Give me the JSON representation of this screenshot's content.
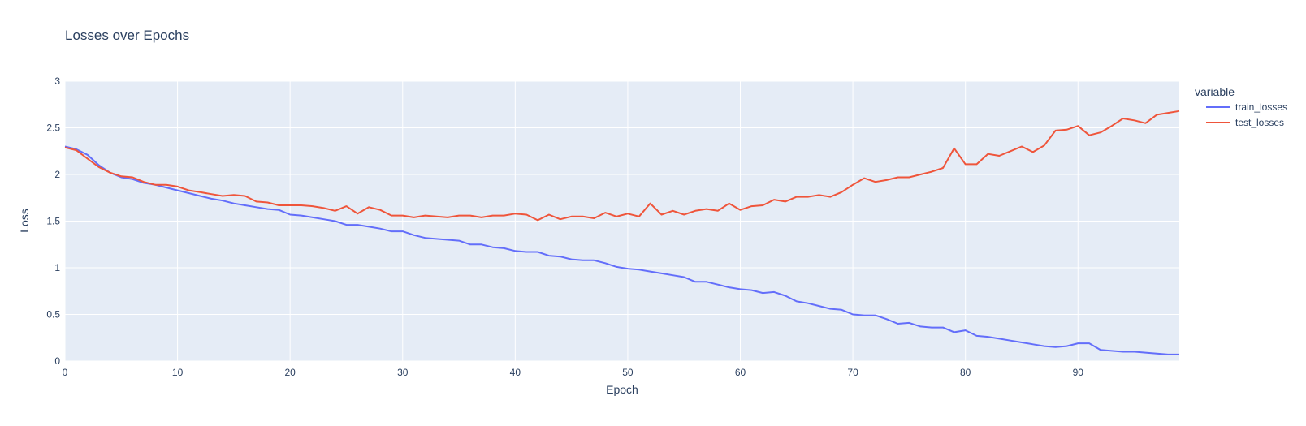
{
  "chart_data": {
    "type": "line",
    "title": "Losses over Epochs",
    "xlabel": "Epoch",
    "ylabel": "Loss",
    "xlim": [
      0,
      99
    ],
    "ylim": [
      0,
      3
    ],
    "x_ticks": [
      0,
      10,
      20,
      30,
      40,
      50,
      60,
      70,
      80,
      90
    ],
    "y_ticks": [
      0,
      0.5,
      1,
      1.5,
      2,
      2.5,
      3
    ],
    "y_tick_labels": [
      "0",
      "0.5",
      "1",
      "1.5",
      "2",
      "2.5",
      "3"
    ],
    "grid": true,
    "legend_title": "variable",
    "legend_position": "right",
    "colors": {
      "plot_bg": "#e5ecf6",
      "grid": "#ffffff",
      "text": "#2a3f5f"
    },
    "series": [
      {
        "name": "train_losses",
        "color": "#636efa",
        "values": [
          2.3,
          2.27,
          2.21,
          2.1,
          2.02,
          1.97,
          1.95,
          1.91,
          1.89,
          1.86,
          1.83,
          1.8,
          1.77,
          1.74,
          1.72,
          1.69,
          1.67,
          1.65,
          1.63,
          1.62,
          1.57,
          1.56,
          1.54,
          1.52,
          1.5,
          1.46,
          1.46,
          1.44,
          1.42,
          1.39,
          1.39,
          1.35,
          1.32,
          1.31,
          1.3,
          1.29,
          1.25,
          1.25,
          1.22,
          1.21,
          1.18,
          1.17,
          1.17,
          1.13,
          1.12,
          1.09,
          1.08,
          1.08,
          1.05,
          1.01,
          0.99,
          0.98,
          0.96,
          0.94,
          0.92,
          0.9,
          0.85,
          0.85,
          0.82,
          0.79,
          0.77,
          0.76,
          0.73,
          0.74,
          0.7,
          0.64,
          0.62,
          0.59,
          0.56,
          0.55,
          0.5,
          0.49,
          0.49,
          0.45,
          0.4,
          0.41,
          0.37,
          0.36,
          0.36,
          0.31,
          0.33,
          0.27,
          0.26,
          0.24,
          0.22,
          0.2,
          0.18,
          0.16,
          0.15,
          0.16,
          0.19,
          0.19,
          0.12,
          0.11,
          0.1,
          0.1,
          0.09,
          0.08,
          0.07,
          0.07
        ]
      },
      {
        "name": "test_losses",
        "color": "#ef553b",
        "values": [
          2.29,
          2.26,
          2.17,
          2.08,
          2.02,
          1.98,
          1.97,
          1.92,
          1.89,
          1.89,
          1.87,
          1.83,
          1.81,
          1.79,
          1.77,
          1.78,
          1.77,
          1.71,
          1.7,
          1.67,
          1.67,
          1.67,
          1.66,
          1.64,
          1.61,
          1.66,
          1.58,
          1.65,
          1.62,
          1.56,
          1.56,
          1.54,
          1.56,
          1.55,
          1.54,
          1.56,
          1.56,
          1.54,
          1.56,
          1.56,
          1.58,
          1.57,
          1.51,
          1.57,
          1.52,
          1.55,
          1.55,
          1.53,
          1.59,
          1.55,
          1.58,
          1.55,
          1.69,
          1.57,
          1.61,
          1.57,
          1.61,
          1.63,
          1.61,
          1.69,
          1.62,
          1.66,
          1.67,
          1.73,
          1.71,
          1.76,
          1.76,
          1.78,
          1.76,
          1.81,
          1.89,
          1.96,
          1.92,
          1.94,
          1.97,
          1.97,
          2.0,
          2.03,
          2.07,
          2.28,
          2.11,
          2.11,
          2.22,
          2.2,
          2.25,
          2.3,
          2.24,
          2.31,
          2.47,
          2.48,
          2.52,
          2.42,
          2.45,
          2.52,
          2.6,
          2.58,
          2.55,
          2.64,
          2.66,
          2.68
        ]
      }
    ]
  }
}
